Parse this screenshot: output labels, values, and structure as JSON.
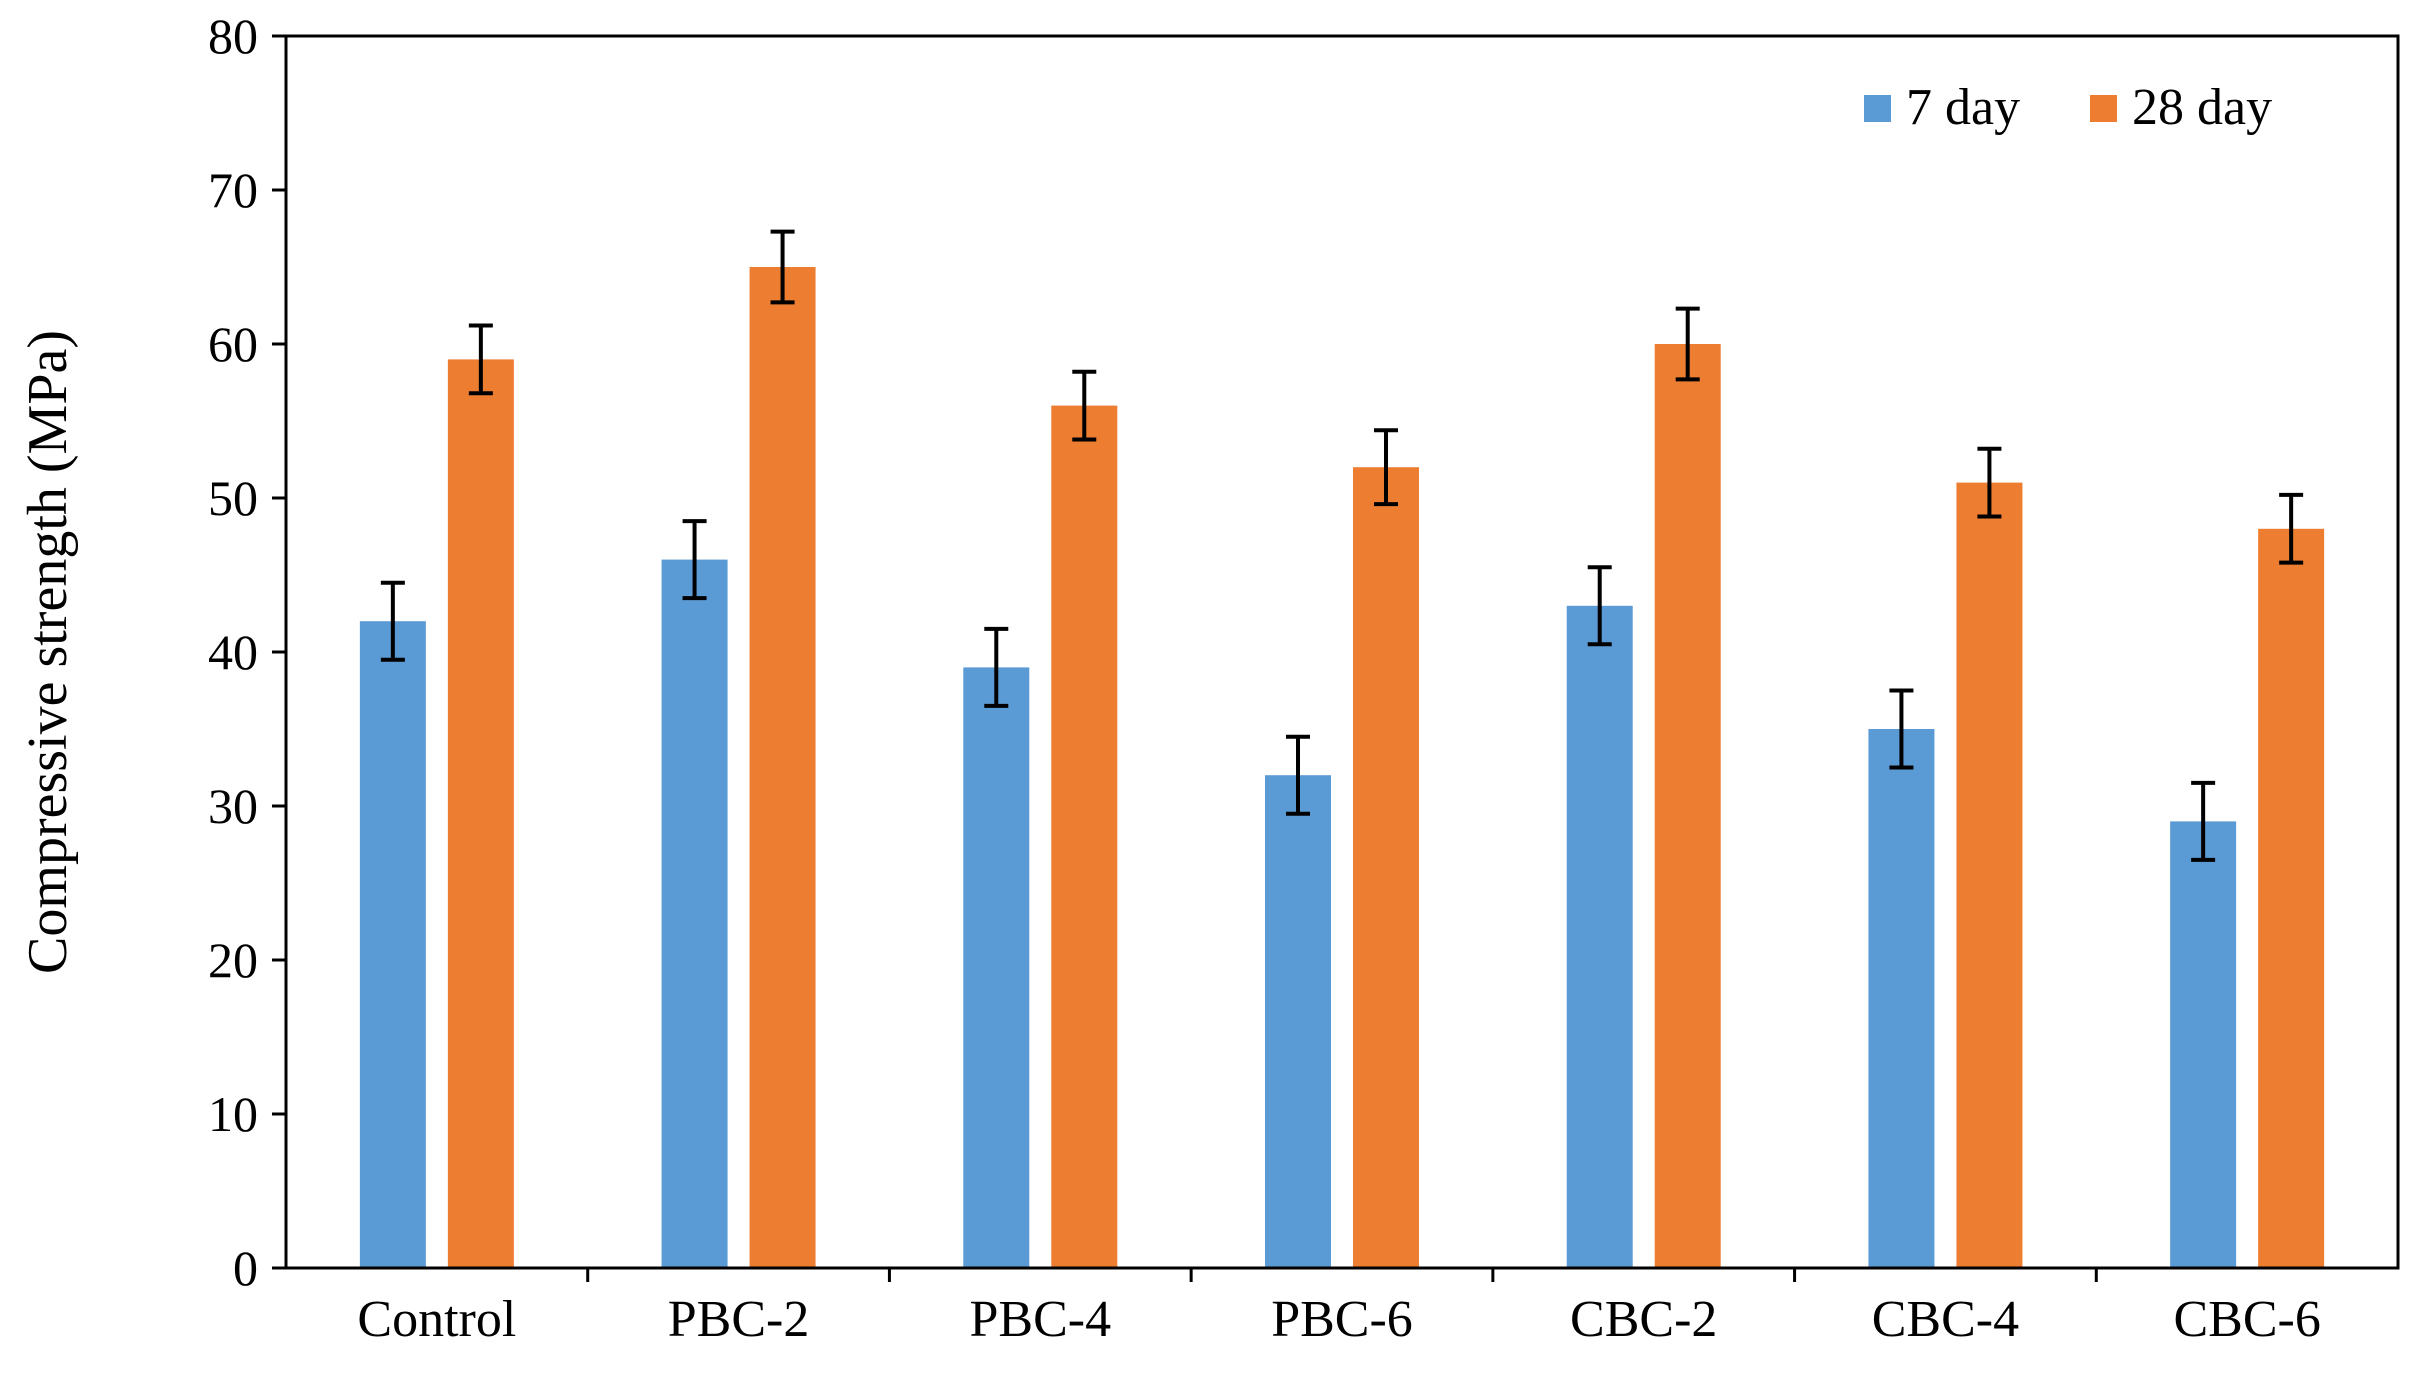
{
  "chart_data": {
    "type": "bar",
    "title": "",
    "xlabel": "",
    "ylabel": "Compressive strength (MPa)",
    "ylim": [
      0,
      80
    ],
    "yticks": [
      "0",
      "10",
      "20",
      "30",
      "40",
      "50",
      "60",
      "70",
      "80"
    ],
    "grid": false,
    "legend_position": "top-right",
    "categories": [
      "Control",
      "PBC-2",
      "PBC-4",
      "PBC-6",
      "CBC-2",
      "CBC-4",
      "CBC-6"
    ],
    "series": [
      {
        "name": "7 day",
        "color": "#5b9bd5",
        "values": [
          42,
          46,
          39,
          32,
          43,
          35,
          29
        ],
        "errors": [
          2.5,
          2.5,
          2.5,
          2.5,
          2.5,
          2.5,
          2.5
        ]
      },
      {
        "name": "28 day",
        "color": "#ed7d31",
        "values": [
          59,
          65,
          56,
          52,
          60,
          51,
          48
        ],
        "errors": [
          2.2,
          2.3,
          2.2,
          2.4,
          2.3,
          2.2,
          2.2
        ]
      }
    ]
  }
}
